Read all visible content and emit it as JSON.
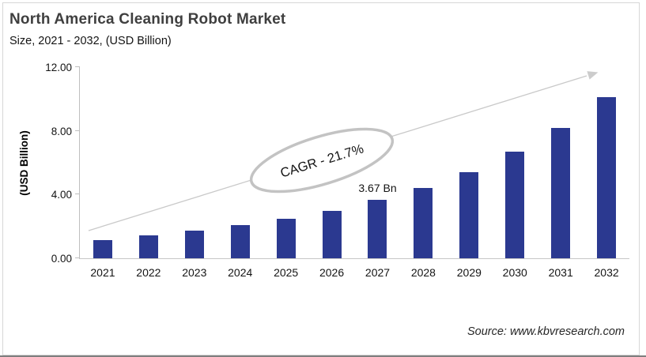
{
  "header": {
    "title": "North America Cleaning Robot Market",
    "subtitle": "Size, 2021 - 2032, (USD Billion)"
  },
  "chart_data": {
    "type": "bar",
    "title": "North America Cleaning Robot Market Size, 2021 - 2032, (USD Billion)",
    "categories": [
      "2021",
      "2022",
      "2023",
      "2024",
      "2025",
      "2026",
      "2027",
      "2028",
      "2029",
      "2030",
      "2031",
      "2032"
    ],
    "values": [
      1.12,
      1.45,
      1.72,
      2.08,
      2.5,
      3.0,
      3.67,
      4.42,
      5.43,
      6.68,
      8.2,
      10.13
    ],
    "xlabel": "",
    "ylabel": "(USD Billion)",
    "ylim": [
      0,
      12
    ],
    "y_ticks": [
      "0.00",
      "4.00",
      "8.00",
      "12.00"
    ],
    "grid": false,
    "legend": false,
    "bar_color": "#2b3990",
    "trend_arrow_color": "#c9c9c9",
    "annotation": {
      "label": "CAGR - 21.7%"
    },
    "point_label": {
      "category": "2027",
      "text": "3.67 Bn"
    }
  },
  "footer": {
    "source": "Source: www.kbvresearch.com"
  },
  "colors": {
    "bar": "#2b3990",
    "title": "#3f3f3f",
    "axis": "#bfbfbf",
    "arrow": "#c9c9c9",
    "ellipse_stroke": "#c3c3c3"
  }
}
